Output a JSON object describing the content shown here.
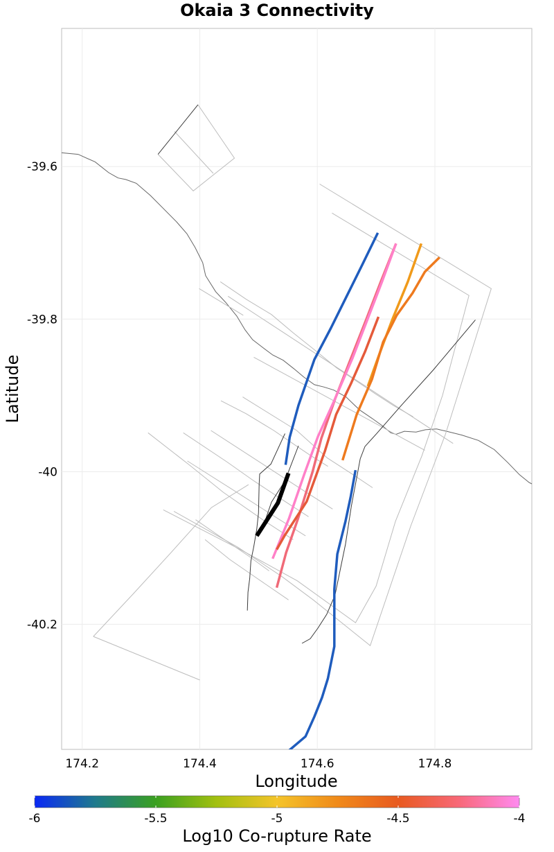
{
  "title": "Okaia 3 Connectivity",
  "xlabel": "Longitude",
  "ylabel": "Latitude",
  "chart_data": {
    "type": "map",
    "title": "Okaia 3 Connectivity",
    "xlabel": "Longitude",
    "ylabel": "Latitude",
    "xlim": [
      174.165,
      174.965
    ],
    "ylim": [
      -40.364,
      -39.419
    ],
    "x_ticks": [
      {
        "value": 174.2,
        "label": "174.2"
      },
      {
        "value": 174.4,
        "label": "174.4"
      },
      {
        "value": 174.6,
        "label": "174.6"
      },
      {
        "value": 174.8,
        "label": "174.8"
      }
    ],
    "y_ticks": [
      {
        "value": -39.6,
        "label": "-39.6"
      },
      {
        "value": -39.8,
        "label": "-39.8"
      },
      {
        "value": -40.0,
        "label": "-40"
      },
      {
        "value": -40.2,
        "label": "-40.2"
      }
    ],
    "grid": true,
    "coastline": [
      [
        174.165,
        -39.582
      ],
      [
        174.193,
        -39.584
      ],
      [
        174.222,
        -39.594
      ],
      [
        174.245,
        -39.608
      ],
      [
        174.261,
        -39.615
      ],
      [
        174.274,
        -39.617
      ],
      [
        174.292,
        -39.622
      ],
      [
        174.316,
        -39.638
      ],
      [
        174.338,
        -39.655
      ],
      [
        174.361,
        -39.673
      ],
      [
        174.378,
        -39.688
      ],
      [
        174.392,
        -39.706
      ],
      [
        174.405,
        -39.726
      ],
      [
        174.41,
        -39.743
      ],
      [
        174.427,
        -39.764
      ],
      [
        174.444,
        -39.778
      ],
      [
        174.463,
        -39.796
      ],
      [
        174.477,
        -39.814
      ],
      [
        174.49,
        -39.827
      ],
      [
        174.505,
        -39.836
      ],
      [
        174.524,
        -39.847
      ],
      [
        174.542,
        -39.854
      ],
      [
        174.56,
        -39.865
      ],
      [
        174.577,
        -39.876
      ],
      [
        174.595,
        -39.886
      ],
      [
        174.611,
        -39.889
      ],
      [
        174.628,
        -39.893
      ],
      [
        174.649,
        -39.902
      ],
      [
        174.661,
        -39.911
      ],
      [
        174.672,
        -39.919
      ],
      [
        174.693,
        -39.93
      ],
      [
        174.711,
        -39.94
      ],
      [
        174.725,
        -39.949
      ],
      [
        174.734,
        -39.951
      ],
      [
        174.748,
        -39.947
      ],
      [
        174.768,
        -39.948
      ],
      [
        174.784,
        -39.945
      ],
      [
        174.803,
        -39.944
      ],
      [
        174.82,
        -39.947
      ],
      [
        174.846,
        -39.952
      ],
      [
        174.874,
        -39.959
      ],
      [
        174.901,
        -39.971
      ],
      [
        174.924,
        -39.988
      ],
      [
        174.944,
        -40.004
      ],
      [
        174.96,
        -40.014
      ],
      [
        174.965,
        -40.016
      ]
    ],
    "fault_traces": [
      [
        [
          174.397,
          -39.519
        ],
        [
          174.329,
          -39.584
        ]
      ],
      [
        [
          174.869,
          -39.801
        ],
        [
          174.797,
          -39.867
        ],
        [
          174.743,
          -39.913
        ],
        [
          174.701,
          -39.95
        ],
        [
          174.681,
          -39.967
        ],
        [
          174.673,
          -39.983
        ],
        [
          174.658,
          -40.045
        ],
        [
          174.648,
          -40.095
        ],
        [
          174.63,
          -40.162
        ],
        [
          174.616,
          -40.187
        ],
        [
          174.601,
          -40.205
        ],
        [
          174.588,
          -40.219
        ],
        [
          174.574,
          -40.225
        ]
      ],
      [
        [
          174.545,
          -39.95
        ],
        [
          174.521,
          -39.99
        ],
        [
          174.502,
          -40.003
        ],
        [
          174.501,
          -40.017
        ],
        [
          174.5,
          -40.054
        ],
        [
          174.497,
          -40.075
        ],
        [
          174.492,
          -40.098
        ],
        [
          174.487,
          -40.117
        ],
        [
          174.485,
          -40.14
        ],
        [
          174.482,
          -40.158
        ],
        [
          174.481,
          -40.182
        ]
      ],
      [
        [
          174.568,
          -39.966
        ],
        [
          174.545,
          -40.012
        ],
        [
          174.522,
          -40.04
        ],
        [
          174.514,
          -40.058
        ],
        [
          174.507,
          -40.075
        ]
      ]
    ],
    "fault_outlines": [
      [
        [
          174.397,
          -39.519
        ],
        [
          174.459,
          -39.589
        ],
        [
          174.389,
          -39.632
        ],
        [
          174.329,
          -39.584
        ]
      ],
      [
        [
          174.357,
          -39.554
        ],
        [
          174.423,
          -39.609
        ]
      ],
      [
        [
          174.604,
          -39.623
        ],
        [
          174.896,
          -39.76
        ],
        [
          174.818,
          -39.951
        ],
        [
          174.759,
          -40.071
        ],
        [
          174.69,
          -40.228
        ],
        [
          174.593,
          -40.168
        ],
        [
          174.539,
          -40.137
        ],
        [
          174.465,
          -40.099
        ],
        [
          174.356,
          -40.052
        ]
      ],
      [
        [
          174.448,
          -39.77
        ],
        [
          174.831,
          -39.963
        ]
      ],
      [
        [
          174.625,
          -39.661
        ],
        [
          174.858,
          -39.769
        ],
        [
          174.813,
          -39.9
        ],
        [
          174.778,
          -39.979
        ],
        [
          174.733,
          -40.065
        ],
        [
          174.7,
          -40.15
        ],
        [
          174.665,
          -40.198
        ],
        [
          174.566,
          -40.143
        ],
        [
          174.469,
          -40.102
        ],
        [
          174.338,
          -40.05
        ]
      ],
      [
        [
          174.492,
          -39.85
        ],
        [
          174.783,
          -39.972
        ]
      ],
      [
        [
          174.435,
          -39.751
        ],
        [
          174.479,
          -39.774
        ],
        [
          174.522,
          -39.794
        ],
        [
          174.559,
          -39.818
        ],
        [
          174.598,
          -39.842
        ],
        [
          174.633,
          -39.864
        ],
        [
          174.668,
          -39.882
        ],
        [
          174.699,
          -39.898
        ],
        [
          174.729,
          -39.913
        ],
        [
          174.763,
          -39.928
        ]
      ],
      [
        [
          174.399,
          -39.76
        ],
        [
          174.474,
          -39.795
        ]
      ],
      [
        [
          174.473,
          -39.902
        ],
        [
          174.565,
          -39.946
        ],
        [
          174.617,
          -39.982
        ],
        [
          174.661,
          -40.004
        ],
        [
          174.694,
          -40.021
        ]
      ],
      [
        [
          174.419,
          -39.946
        ],
        [
          174.517,
          -39.995
        ],
        [
          174.581,
          -40.027
        ],
        [
          174.626,
          -40.049
        ]
      ],
      [
        [
          174.436,
          -39.907
        ],
        [
          174.479,
          -39.924
        ],
        [
          174.526,
          -39.946
        ],
        [
          174.562,
          -39.965
        ],
        [
          174.589,
          -39.979
        ],
        [
          174.618,
          -39.993
        ]
      ],
      [
        [
          174.379,
          -39.986
        ],
        [
          174.465,
          -40.028
        ],
        [
          174.536,
          -40.063
        ],
        [
          174.58,
          -40.084
        ]
      ],
      [
        [
          174.372,
          -39.949
        ],
        [
          174.446,
          -39.987
        ],
        [
          174.492,
          -40.012
        ],
        [
          174.541,
          -40.037
        ],
        [
          174.585,
          -40.059
        ]
      ],
      [
        [
          174.312,
          -39.949
        ],
        [
          174.382,
          -39.991
        ],
        [
          174.44,
          -40.027
        ],
        [
          174.509,
          -40.064
        ],
        [
          174.559,
          -40.089
        ]
      ],
      [
        [
          174.219,
          -40.216
        ],
        [
          174.287,
          -40.16
        ],
        [
          174.35,
          -40.107
        ],
        [
          174.42,
          -40.047
        ],
        [
          174.483,
          -40.017
        ]
      ],
      [
        [
          174.409,
          -40.089
        ],
        [
          174.451,
          -40.115
        ],
        [
          174.498,
          -40.14
        ],
        [
          174.551,
          -40.168
        ]
      ],
      [
        [
          174.393,
          -40.063
        ],
        [
          174.444,
          -40.09
        ],
        [
          174.484,
          -40.111
        ],
        [
          174.518,
          -40.13
        ]
      ],
      [
        [
          174.219,
          -40.216
        ],
        [
          174.4,
          -40.273
        ]
      ]
    ],
    "ruptures": [
      {
        "color": "#1f5cbd",
        "width": 3.5,
        "coords": [
          [
            174.703,
            -39.687
          ],
          [
            174.675,
            -39.731
          ],
          [
            174.65,
            -39.77
          ],
          [
            174.623,
            -39.812
          ],
          [
            174.595,
            -39.853
          ],
          [
            174.568,
            -39.913
          ],
          [
            174.553,
            -39.955
          ],
          [
            174.546,
            -39.991
          ]
        ]
      },
      {
        "color": "#1f5cbd",
        "width": 3.5,
        "coords": [
          [
            174.665,
            -39.998
          ],
          [
            174.657,
            -40.032
          ],
          [
            174.648,
            -40.065
          ],
          [
            174.634,
            -40.108
          ],
          [
            174.629,
            -40.154
          ],
          [
            174.629,
            -40.229
          ],
          [
            174.618,
            -40.271
          ],
          [
            174.608,
            -40.296
          ],
          [
            174.595,
            -40.321
          ],
          [
            174.58,
            -40.347
          ],
          [
            174.551,
            -40.366
          ],
          [
            174.526,
            -40.386
          ],
          [
            174.498,
            -40.412
          ],
          [
            174.47,
            -40.438
          ],
          [
            174.437,
            -40.471
          ],
          [
            174.4,
            -40.507
          ]
        ]
      },
      {
        "color": "#f06a78",
        "width": 3.5,
        "coords": [
          [
            174.734,
            -39.701
          ],
          [
            174.708,
            -39.751
          ],
          [
            174.684,
            -39.799
          ],
          [
            174.656,
            -39.854
          ],
          [
            174.63,
            -39.905
          ],
          [
            174.607,
            -39.956
          ],
          [
            174.592,
            -40.0
          ],
          [
            174.567,
            -40.062
          ],
          [
            174.547,
            -40.106
          ],
          [
            174.531,
            -40.152
          ]
        ]
      },
      {
        "color": "#ff80c8",
        "width": 3.5,
        "coords": [
          [
            174.734,
            -39.701
          ],
          [
            174.71,
            -39.751
          ],
          [
            174.685,
            -39.801
          ],
          [
            174.66,
            -39.851
          ],
          [
            174.627,
            -39.91
          ],
          [
            174.601,
            -39.954
          ],
          [
            174.578,
            -40.003
          ],
          [
            174.552,
            -40.061
          ],
          [
            174.524,
            -40.114
          ]
        ]
      },
      {
        "color": "#e55a3a",
        "width": 3.5,
        "coords": [
          [
            174.704,
            -39.797
          ],
          [
            174.681,
            -39.843
          ],
          [
            174.657,
            -39.885
          ],
          [
            174.632,
            -39.925
          ],
          [
            174.613,
            -39.973
          ],
          [
            174.582,
            -40.039
          ],
          [
            174.545,
            -40.083
          ],
          [
            174.531,
            -40.102
          ]
        ]
      },
      {
        "color": "#f09a1a",
        "width": 3.5,
        "coords": [
          [
            174.777,
            -39.701
          ],
          [
            174.754,
            -39.751
          ],
          [
            174.728,
            -39.8
          ],
          [
            174.706,
            -39.845
          ],
          [
            174.686,
            -39.888
          ]
        ]
      },
      {
        "color": "#ee7a1e",
        "width": 3.5,
        "coords": [
          [
            174.808,
            -39.719
          ],
          [
            174.783,
            -39.738
          ],
          [
            174.762,
            -39.766
          ],
          [
            174.735,
            -39.795
          ],
          [
            174.712,
            -39.83
          ],
          [
            174.693,
            -39.879
          ],
          [
            174.667,
            -39.925
          ],
          [
            174.643,
            -39.985
          ]
        ]
      },
      {
        "color": "#000000",
        "width": 6,
        "coords": [
          [
            174.551,
            -40.002
          ],
          [
            174.533,
            -40.041
          ],
          [
            174.497,
            -40.084
          ]
        ]
      }
    ],
    "colorbar": {
      "label": "Log10 Co-rupture Rate",
      "min": -6,
      "max": -4,
      "ticks": [
        {
          "value": -6,
          "label": "-6"
        },
        {
          "value": -5.5,
          "label": "-5.5"
        },
        {
          "value": -5,
          "label": "-5"
        },
        {
          "value": -4.5,
          "label": "-4.5"
        },
        {
          "value": -4,
          "label": "-4"
        }
      ],
      "stops": [
        {
          "value": -6,
          "color": "#0a28f5"
        },
        {
          "value": -5.75,
          "color": "#1f7a8c"
        },
        {
          "value": -5.5,
          "color": "#3aa020"
        },
        {
          "value": -5.25,
          "color": "#a2c010"
        },
        {
          "value": -5,
          "color": "#f4c42a"
        },
        {
          "value": -4.75,
          "color": "#f08a1a"
        },
        {
          "value": -4.5,
          "color": "#e85a20"
        },
        {
          "value": -4.25,
          "color": "#f86878"
        },
        {
          "value": -4,
          "color": "#ff8af0"
        }
      ]
    }
  }
}
